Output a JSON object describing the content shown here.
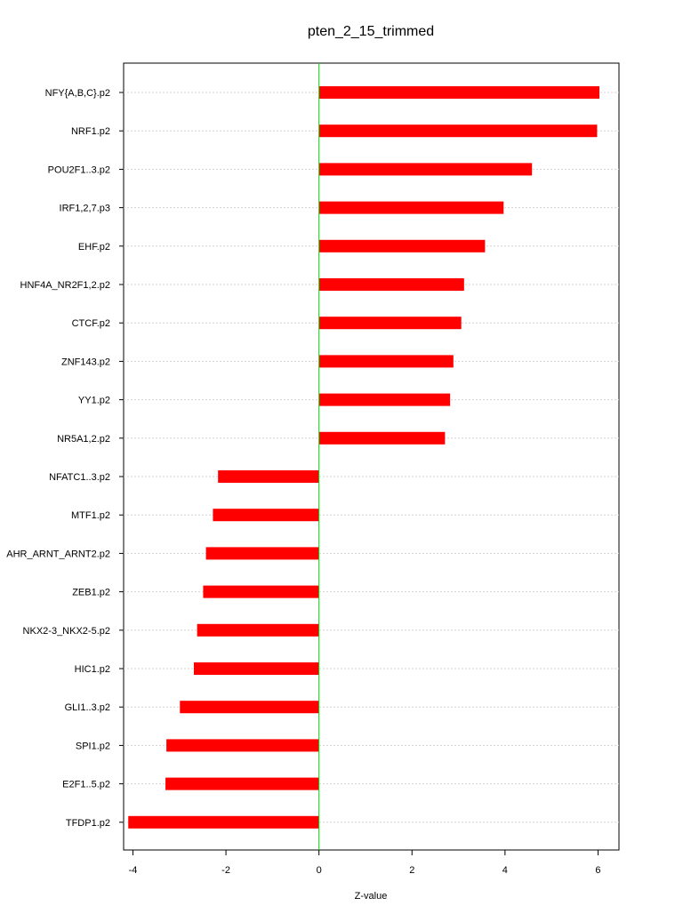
{
  "chart_data": {
    "type": "bar",
    "orientation": "horizontal",
    "title": "pten_2_15_trimmed",
    "xlabel": "Z-value",
    "ylabel": "",
    "xlim": [
      -4.2,
      6.45
    ],
    "xticks": [
      -4,
      -2,
      0,
      2,
      4,
      6
    ],
    "grid": true,
    "reference_line_x": 0,
    "categories": [
      "NFY{A,B,C}.p2",
      "NRF1.p2",
      "POU2F1..3.p2",
      "IRF1,2,7.p3",
      "EHF.p2",
      "HNF4A_NR2F1,2.p2",
      "CTCF.p2",
      "ZNF143.p2",
      "YY1.p2",
      "NR5A1,2.p2",
      "NFATC1..3.p2",
      "MTF1.p2",
      "AHR_ARNT_ARNT2.p2",
      "ZEB1.p2",
      "NKX2-3_NKX2-5.p2",
      "HIC1.p2",
      "GLI1..3.p2",
      "SPI1.p2",
      "E2F1..5.p2",
      "TFDP1.p2"
    ],
    "values": [
      6.03,
      5.98,
      4.58,
      3.97,
      3.57,
      3.12,
      3.06,
      2.89,
      2.82,
      2.71,
      -2.17,
      -2.28,
      -2.43,
      -2.49,
      -2.62,
      -2.69,
      -2.99,
      -3.28,
      -3.3,
      -4.1
    ]
  },
  "colors": {
    "bar": "#ff0000",
    "zero_line": "#00dd00",
    "grid": "#d3d3d3",
    "axis": "#000000"
  }
}
